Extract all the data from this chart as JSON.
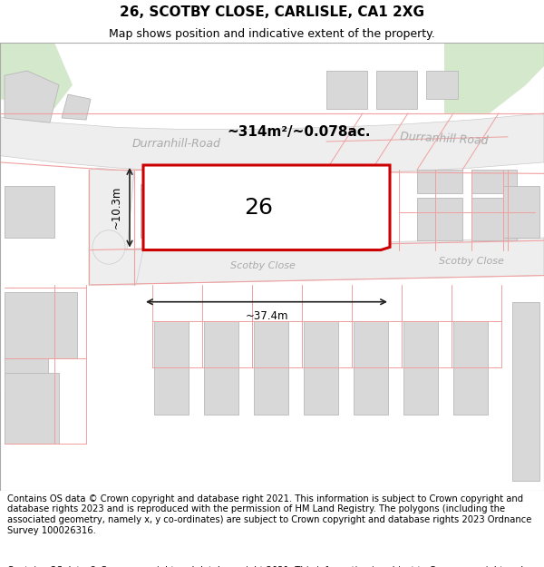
{
  "title": "26, SCOTBY CLOSE, CARLISLE, CA1 2XG",
  "subtitle": "Map shows position and indicative extent of the property.",
  "footer": "Contains OS data © Crown copyright and database right 2021. This information is subject to Crown copyright and database rights 2023 and is reproduced with the permission of HM Land Registry. The polygons (including the associated geometry, namely x, y co-ordinates) are subject to Crown copyright and database rights 2023 Ordnance Survey 100026316.",
  "area_label": "~314m²/~0.078ac.",
  "number_label": "26",
  "width_label": "~37.4m",
  "height_label": "~10.3m",
  "road_label_left": "Durranhill-Road",
  "road_label_right": "Durranhill Road",
  "scotby_label_mid": "Scotby Close",
  "scotby_label_right": "Scotby Close",
  "map_bg": "#ffffff",
  "road_fill": "#e8e8e8",
  "road_edge": "#c8c8c8",
  "boundary_color": "#f0a0a0",
  "plot_stroke": "#cc0000",
  "plot_fill": "#ffffff",
  "building_fill": "#d8d8d8",
  "building_edge": "#b8b8b8",
  "green_fill": "#d4e8cc",
  "dim_color": "#222222",
  "road_text_color": "#aaaaaa",
  "title_fontsize": 11,
  "subtitle_fontsize": 9,
  "footer_fontsize": 7.2
}
